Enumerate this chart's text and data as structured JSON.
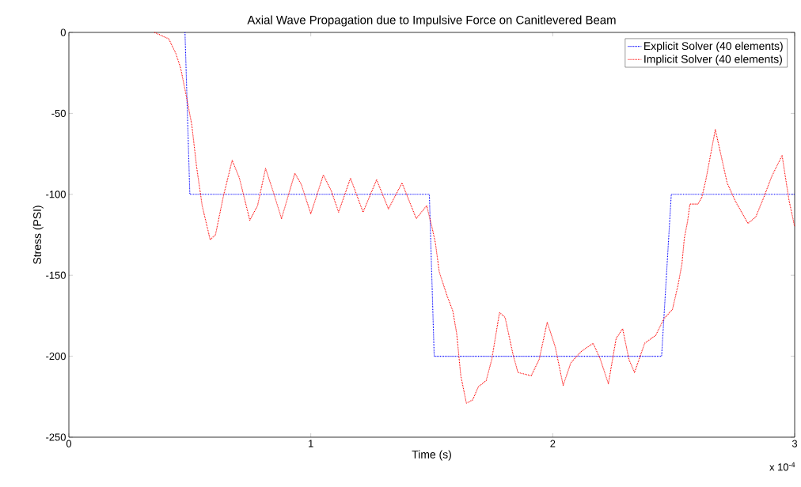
{
  "chart_data": {
    "type": "line",
    "title": "Axial Wave Propagation due to Impulsive Force on Canitlevered Beam",
    "xlabel": "Time (s)",
    "ylabel": "Stress (PSI)",
    "annotations": [
      "x 10$^{-4}$"
    ],
    "xlim": [
      0,
      3
    ],
    "xticks": [
      0,
      1,
      2,
      3
    ],
    "ylim": [
      -250,
      0
    ],
    "yticks": [
      -250,
      -200,
      -150,
      -100,
      -50,
      0
    ],
    "grid": false,
    "legend": "top right",
    "line_style": "dotted",
    "marker": "none",
    "series": [
      {
        "name": "Explicit Solver (40 elements)",
        "color": "#0000ff",
        "x": [
          0.48,
          0.49,
          0.5,
          1.49,
          1.5,
          1.51,
          2.45,
          2.47,
          2.49,
          3
        ],
        "values": [
          0,
          -50,
          -100,
          -100,
          -150,
          -200,
          -200,
          -150,
          -100,
          -100
        ]
      },
      {
        "name": "Implicit Solver (40 elements)",
        "color": "#ff0000",
        "x": [
          0.354,
          0.413,
          0.442,
          0.462,
          0.485,
          0.508,
          0.528,
          0.551,
          0.584,
          0.606,
          0.639,
          0.675,
          0.705,
          0.748,
          0.78,
          0.813,
          0.846,
          0.879,
          0.934,
          0.961,
          1.0,
          1.052,
          1.085,
          1.115,
          1.164,
          1.216,
          1.272,
          1.321,
          1.377,
          1.436,
          1.479,
          1.502,
          1.515,
          1.531,
          1.564,
          1.587,
          1.603,
          1.62,
          1.643,
          1.669,
          1.692,
          1.725,
          1.748,
          1.78,
          1.803,
          1.836,
          1.856,
          1.911,
          1.944,
          1.977,
          2.01,
          2.043,
          2.075,
          2.118,
          2.167,
          2.197,
          2.23,
          2.262,
          2.289,
          2.315,
          2.338,
          2.38,
          2.426,
          2.459,
          2.495,
          2.518,
          2.534,
          2.544,
          2.557,
          2.567,
          2.6,
          2.616,
          2.633,
          2.672,
          2.721,
          2.754,
          2.807,
          2.839,
          2.872,
          2.905,
          2.948,
          2.977,
          3.0
        ],
        "values": [
          0,
          -4,
          -13,
          -22,
          -39,
          -57,
          -83,
          -107,
          -128,
          -125,
          -101,
          -79,
          -90,
          -116,
          -107,
          -84,
          -99,
          -115,
          -87,
          -94,
          -112,
          -88,
          -98,
          -111,
          -90,
          -111,
          -91,
          -109,
          -93,
          -115,
          -107,
          -121,
          -130,
          -148,
          -163,
          -172,
          -186,
          -212,
          -229,
          -227,
          -219,
          -215,
          -202,
          -173,
          -176,
          -199,
          -210,
          -212,
          -202,
          -179,
          -194,
          -218,
          -204,
          -197,
          -192,
          -202,
          -217,
          -189,
          -183,
          -202,
          -210,
          -192,
          -187,
          -177,
          -171,
          -156,
          -143,
          -127,
          -117,
          -106,
          -106,
          -102,
          -91,
          -60,
          -93,
          -104,
          -118,
          -114,
          -102,
          -89,
          -76,
          -104,
          -120
        ]
      }
    ]
  }
}
